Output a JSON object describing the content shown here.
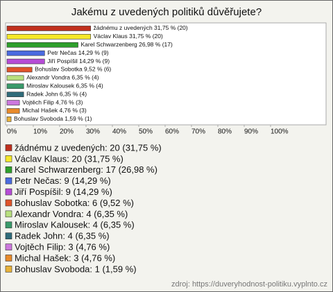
{
  "chart_data": {
    "type": "bar",
    "orientation": "horizontal",
    "title": "Jakému z uvedených politiků důvěřujete?",
    "categories": [
      "žádnému z uvedených",
      "Václav Klaus",
      "Karel Schwarzenberg",
      "Petr Nečas",
      "Jiří Pospíšil",
      "Bohuslav Sobotka",
      "Alexandr Vondra",
      "Miroslav Kalousek",
      "Radek John",
      "Vojtěch Filip",
      "Michal Hašek",
      "Bohuslav Svoboda"
    ],
    "values": [
      31.75,
      31.75,
      26.98,
      14.29,
      14.29,
      9.52,
      6.35,
      6.35,
      6.35,
      4.76,
      4.76,
      1.59
    ],
    "value_labels": [
      "žádnému z uvedených 31,75 % (20)",
      "Václav Klaus 31,75 % (20)",
      "Karel Schwarzenberg 26,98 % (17)",
      "Petr Nečas 14,29 % (9)",
      "Jiří Pospíšil 14,29 % (9)",
      "Bohuslav Sobotka 9,52 % (6)",
      "Alexandr Vondra 6,35 % (4)",
      "Miroslav Kalousek 6,35 % (4)",
      "Radek John 6,35 % (4)",
      "Vojtěch Filip 4,76 % (3)",
      "Michal Hašek 4,76 % (3)",
      "Bohuslav Svoboda 1,59 % (1)"
    ],
    "legend_labels": [
      "žádnému z uvedených: 20 (31,75 %)",
      "Václav Klaus: 20 (31,75 %)",
      "Karel Schwarzenberg: 17 (26,98 %)",
      "Petr Nečas: 9 (14,29 %)",
      "Jiří Pospíšil: 9 (14,29 %)",
      "Bohuslav Sobotka: 6 (9,52 %)",
      "Alexandr Vondra: 4 (6,35 %)",
      "Miroslav Kalousek: 4 (6,35 %)",
      "Radek John: 4 (6,35 %)",
      "Vojtěch Filip: 3 (4,76 %)",
      "Michal Hašek: 3 (4,76 %)",
      "Bohuslav Svoboda: 1 (1,59 %)"
    ],
    "colors": [
      "#c0301e",
      "#f5e82a",
      "#2ea02c",
      "#4a6be0",
      "#b64cd6",
      "#e0542a",
      "#b8e07e",
      "#3a9a6a",
      "#2f6b7a",
      "#cc77dd",
      "#e88a2a",
      "#e8b23a"
    ],
    "xlim": [
      0,
      120
    ],
    "xticks": [
      {
        "value": 0,
        "label": "0%"
      },
      {
        "value": 10,
        "label": "10%"
      },
      {
        "value": 20,
        "label": "20%"
      },
      {
        "value": 30,
        "label": "30%"
      },
      {
        "value": 40,
        "label": "40%"
      },
      {
        "value": 50,
        "label": "50%"
      },
      {
        "value": 60,
        "label": "60%"
      },
      {
        "value": 70,
        "label": "70%"
      },
      {
        "value": 80,
        "label": "80%"
      },
      {
        "value": 90,
        "label": "90%"
      },
      {
        "value": 100,
        "label": "100%"
      }
    ],
    "source": "zdroj: https://duveryhodnost-politiku.vyplnto.cz"
  }
}
